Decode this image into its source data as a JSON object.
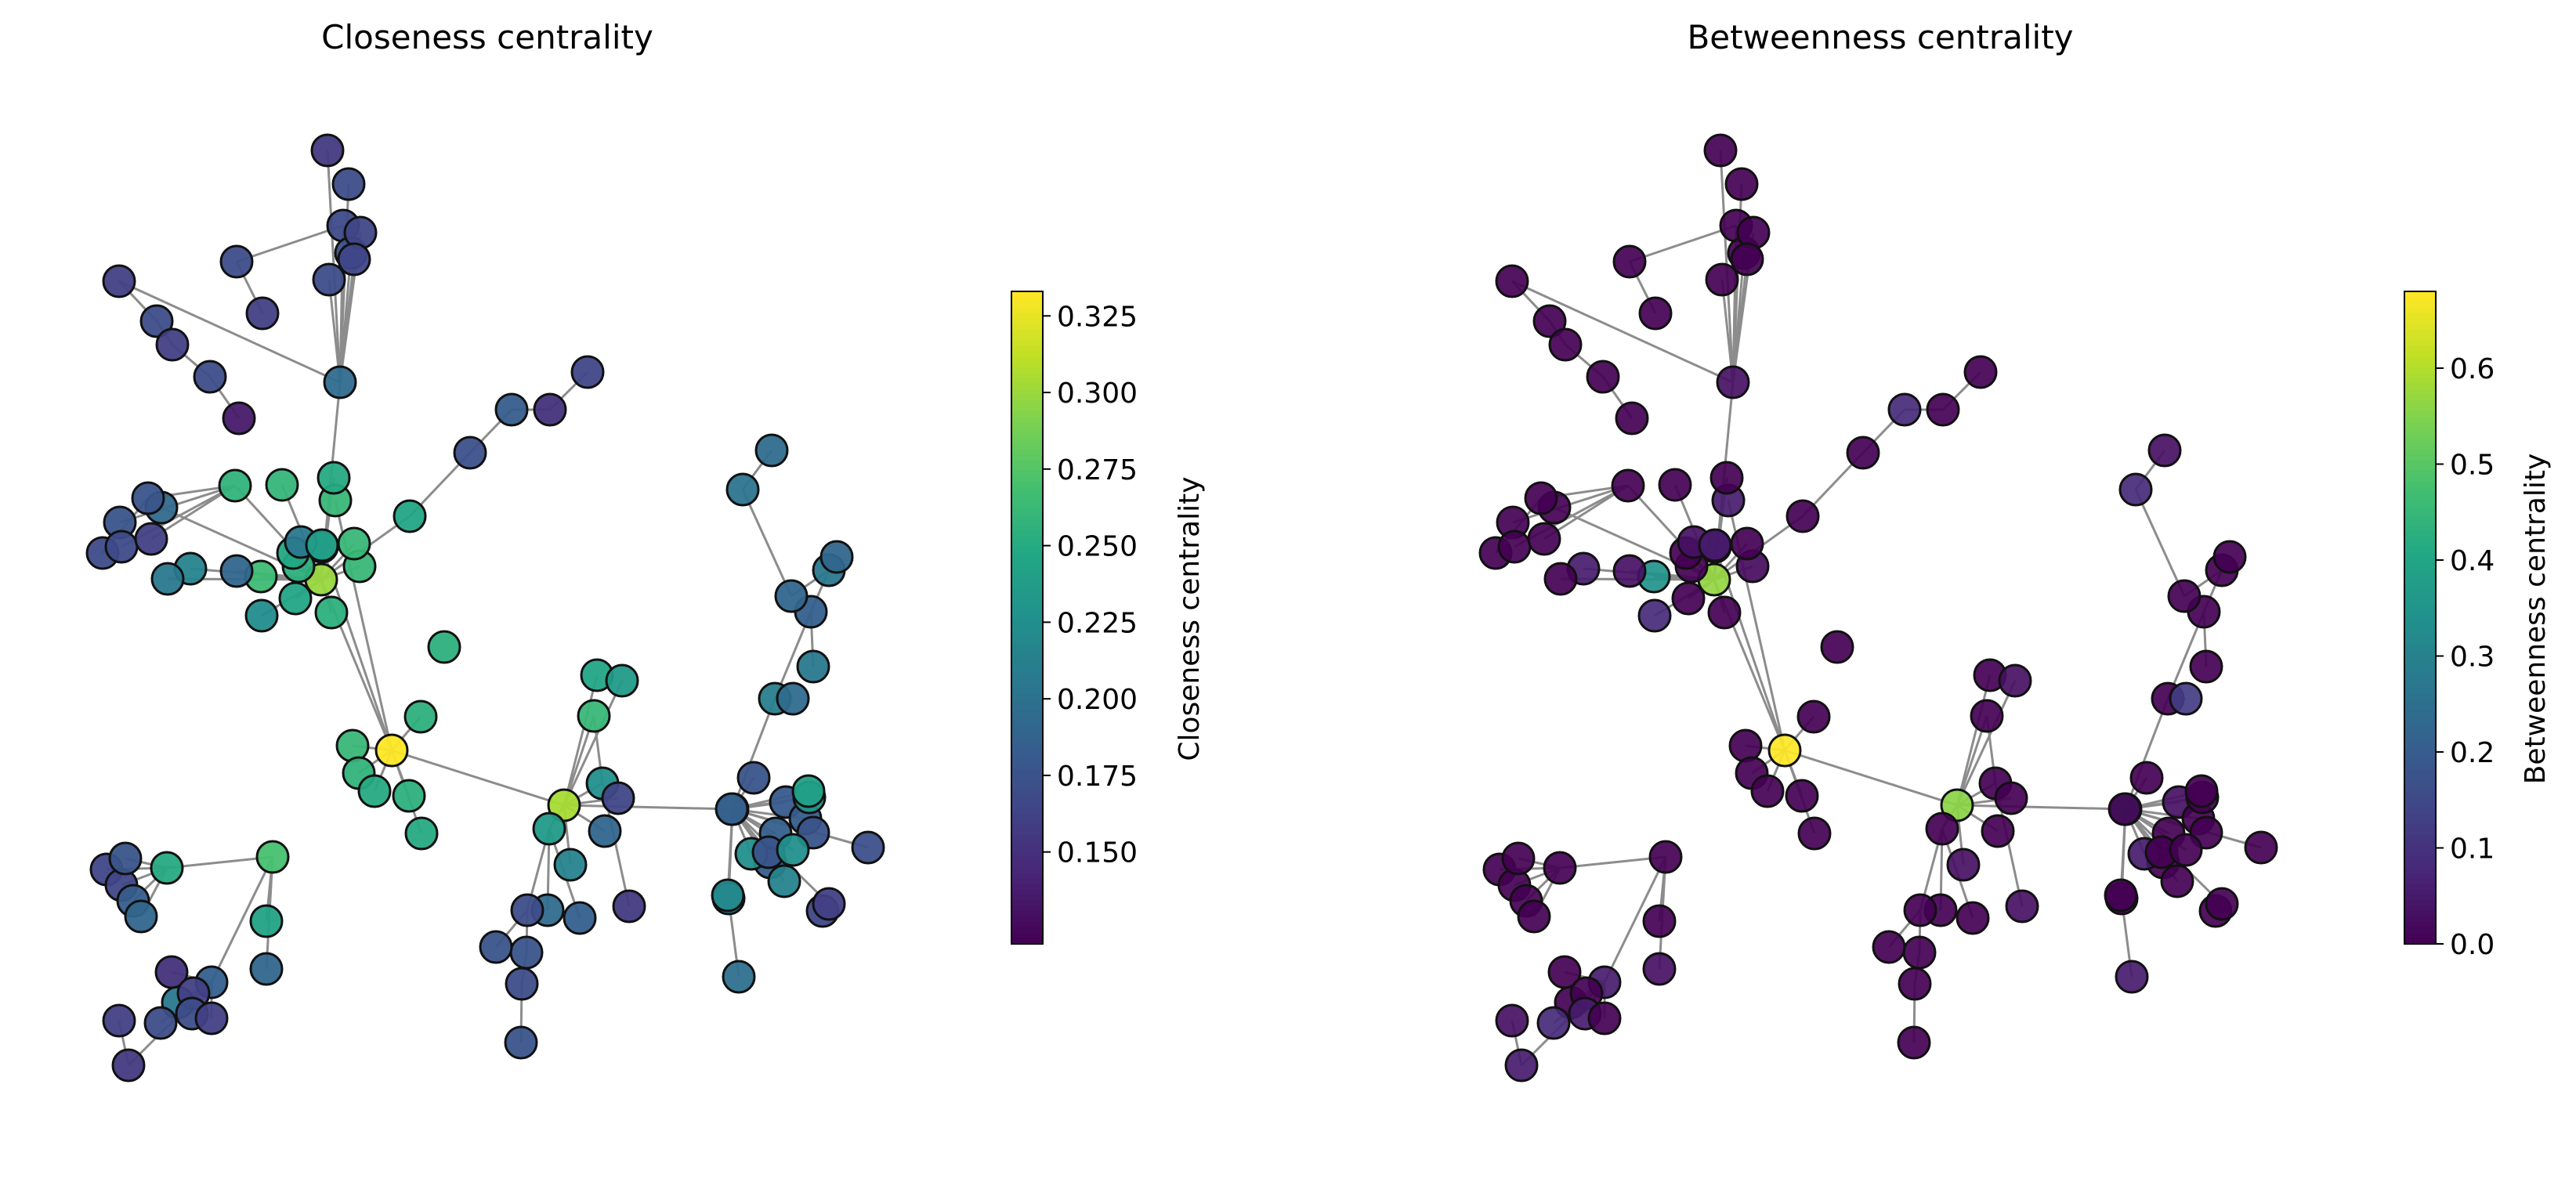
{
  "chart_data": [
    {
      "type": "network",
      "title": "Closeness centrality",
      "colormap": "viridis",
      "colorbar": {
        "label": "Closeness centrality",
        "range": [
          0.12,
          0.333
        ],
        "ticks": [
          "0.150",
          "0.175",
          "0.200",
          "0.225",
          "0.250",
          "0.275",
          "0.300",
          "0.325"
        ],
        "tick_values": [
          0.15,
          0.175,
          0.2,
          0.225,
          0.25,
          0.275,
          0.3,
          0.325
        ]
      },
      "node_values": [
        0.333,
        0.305,
        0.3,
        0.245,
        0.27,
        0.262,
        0.255,
        0.255,
        0.258,
        0.25,
        0.255,
        0.25,
        0.258,
        0.262,
        0.245,
        0.255,
        0.262,
        0.255,
        0.248,
        0.223,
        0.205,
        0.245,
        0.25,
        0.238,
        0.195,
        0.265,
        0.258,
        0.19,
        0.215,
        0.205,
        0.192,
        0.26,
        0.262,
        0.262,
        0.245,
        0.235,
        0.225,
        0.235,
        0.215,
        0.195,
        0.185,
        0.155,
        0.17,
        0.175,
        0.17,
        0.175,
        0.175,
        0.165,
        0.19,
        0.182,
        0.182,
        0.175,
        0.18,
        0.185,
        0.182,
        0.175,
        0.172,
        0.165,
        0.215,
        0.21,
        0.225,
        0.175,
        0.225,
        0.198,
        0.22,
        0.21,
        0.195,
        0.185,
        0.205,
        0.205,
        0.19,
        0.19,
        0.202,
        0.195,
        0.16,
        0.23,
        0.24,
        0.25,
        0.242,
        0.19,
        0.185,
        0.205,
        0.17,
        0.155,
        0.16,
        0.15,
        0.16,
        0.17,
        0.16,
        0.165,
        0.165,
        0.175,
        0.182,
        0.19,
        0.172,
        0.182,
        0.15,
        0.165,
        0.16,
        0.17,
        0.16,
        0.17,
        0.135,
        0.155,
        0.168,
        0.17,
        0.16,
        0.172,
        0.165,
        0.17,
        0.17,
        0.165,
        0.175,
        0.175,
        0.168,
        0.168,
        0.16,
        0.17,
        0.172
      ]
    },
    {
      "type": "network",
      "title": "Betweenness centrality",
      "colormap": "viridis",
      "colorbar": {
        "label": "Betweenness centrality",
        "range": [
          0.0,
          0.68
        ],
        "ticks": [
          "0.0",
          "0.1",
          "0.2",
          "0.3",
          "0.4",
          "0.5",
          "0.6"
        ],
        "tick_values": [
          0.0,
          0.1,
          0.2,
          0.3,
          0.4,
          0.5,
          0.6
        ]
      },
      "node_values": [
        0.68,
        0.56,
        0.57,
        0.38,
        0.0,
        0.0,
        0.0,
        0.0,
        0.0,
        0.0,
        0.0,
        0.0,
        0.0,
        0.05,
        0.0,
        0.0,
        0.02,
        0.0,
        0.0,
        0.08,
        0.03,
        0.0,
        0.0,
        0.05,
        0.03,
        0.35,
        0.0,
        0.03,
        0.05,
        0.0,
        0.0,
        0.0,
        0.0,
        0.0,
        0.0,
        0.03,
        0.0,
        0.0,
        0.03,
        0.0,
        0.0,
        0.03,
        0.0,
        0.0,
        0.0,
        0.0,
        0.0,
        0.0,
        0.0,
        0.0,
        0.0,
        0.0,
        0.03,
        0.0,
        0.0,
        0.0,
        0.0,
        0.0,
        0.0,
        0.0,
        0.05,
        0.0,
        0.0,
        0.05,
        0.0,
        0.0,
        0.12,
        0.0,
        0.0,
        0.0,
        0.0,
        0.0,
        0.08,
        0.03,
        0.0,
        0.0,
        0.0,
        0.0,
        0.0,
        0.03,
        0.05,
        0.0,
        0.08,
        0.05,
        0.03,
        0.0,
        0.0,
        0.05,
        0.0,
        0.0,
        0.0,
        0.0,
        0.0,
        0.0,
        0.0,
        0.08,
        0.0,
        0.0,
        0.0,
        0.0,
        0.0,
        0.0,
        0.0,
        0.0,
        0.0,
        0.0,
        0.0,
        0.0,
        0.0,
        0.0,
        0.0,
        0.0,
        0.0,
        0.0,
        0.0,
        0.0,
        0.0,
        0.0,
        0.0
      ]
    }
  ]
}
